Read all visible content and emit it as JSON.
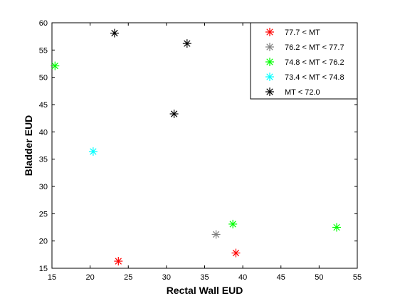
{
  "chart_data": {
    "type": "scatter",
    "title": "",
    "xlabel": "Rectal Wall EUD",
    "ylabel": "Bladder EUD",
    "xlim": [
      15,
      55
    ],
    "ylim": [
      15,
      60
    ],
    "xticks": [
      15,
      20,
      25,
      30,
      35,
      40,
      45,
      50,
      55
    ],
    "yticks": [
      15,
      20,
      25,
      30,
      35,
      40,
      45,
      50,
      55,
      60
    ],
    "grid": false,
    "legend_position": "top-right",
    "marker": "asterisk",
    "series": [
      {
        "name": "77.7 < MT",
        "color": "#ff0000",
        "points": [
          [
            23.7,
            16.3
          ],
          [
            39.1,
            17.8
          ]
        ]
      },
      {
        "name": "76.2 < MT < 77.7",
        "color": "#808080",
        "points": [
          [
            36.5,
            21.2
          ]
        ]
      },
      {
        "name": "74.8 < MT < 76.2",
        "color": "#00ff00",
        "points": [
          [
            15.4,
            52.1
          ],
          [
            38.7,
            23.1
          ],
          [
            52.3,
            22.5
          ]
        ]
      },
      {
        "name": "73.4 < MT < 74.8",
        "color": "#00ffff",
        "points": [
          [
            20.4,
            36.4
          ]
        ]
      },
      {
        "name": "MT < 72.0",
        "color": "#000000",
        "points": [
          [
            23.2,
            58.1
          ],
          [
            32.7,
            56.2
          ],
          [
            31.0,
            43.3
          ]
        ]
      }
    ]
  }
}
